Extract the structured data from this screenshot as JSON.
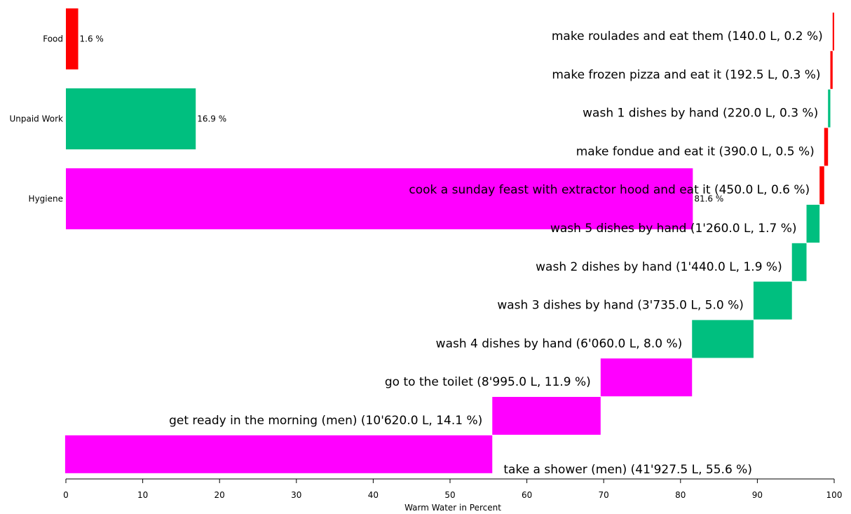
{
  "colors": {
    "Food": "#ff0000",
    "Unpaid Work": "#00bf7f",
    "Hygiene": "#ff00ff"
  },
  "chart_data": [
    {
      "type": "bar",
      "orientation": "horizontal",
      "categories": [
        "Food",
        "Unpaid Work",
        "Hygiene"
      ],
      "values": [
        1.6,
        16.9,
        81.6
      ],
      "value_labels": [
        "1.6 %",
        "16.9 %",
        "81.6 %"
      ],
      "xlim": [
        0,
        100
      ]
    },
    {
      "type": "bar",
      "subtype": "waterfall",
      "xlabel": "Warm Water in Percent",
      "xlim": [
        0,
        100
      ],
      "xticks": [
        "0",
        "10",
        "20",
        "30",
        "40",
        "50",
        "60",
        "70",
        "80",
        "90",
        "100"
      ],
      "activities": [
        {
          "label": "make roulades and eat them (140.0 L, 0.2 %)",
          "category": "Food",
          "percent": 0.2,
          "liters": 140.0
        },
        {
          "label": "make frozen pizza and eat it (192.5 L, 0.3 %)",
          "category": "Food",
          "percent": 0.3,
          "liters": 192.5
        },
        {
          "label": "wash 1 dishes by hand (220.0 L, 0.3 %)",
          "category": "Unpaid Work",
          "percent": 0.3,
          "liters": 220.0
        },
        {
          "label": "make fondue and eat it (390.0 L, 0.5 %)",
          "category": "Food",
          "percent": 0.5,
          "liters": 390.0
        },
        {
          "label": "cook a sunday feast with extractor hood and eat it (450.0 L, 0.6 %)",
          "category": "Food",
          "percent": 0.6,
          "liters": 450.0
        },
        {
          "label": "wash 5 dishes by hand (1'260.0 L, 1.7 %)",
          "category": "Unpaid Work",
          "percent": 1.7,
          "liters": 1260.0
        },
        {
          "label": "wash 2 dishes by hand (1'440.0 L, 1.9 %)",
          "category": "Unpaid Work",
          "percent": 1.9,
          "liters": 1440.0
        },
        {
          "label": "wash 3 dishes by hand (3'735.0 L, 5.0 %)",
          "category": "Unpaid Work",
          "percent": 5.0,
          "liters": 3735.0
        },
        {
          "label": "wash 4 dishes by hand (6'060.0 L, 8.0 %)",
          "category": "Unpaid Work",
          "percent": 8.0,
          "liters": 6060.0
        },
        {
          "label": "go to the toilet (8'995.0 L, 11.9 %)",
          "category": "Hygiene",
          "percent": 11.9,
          "liters": 8995.0
        },
        {
          "label": "get ready in the morning (men) (10'620.0 L, 14.1 %)",
          "category": "Hygiene",
          "percent": 14.1,
          "liters": 10620.0
        },
        {
          "label": "take a shower (men) (41'927.5 L, 55.6 %)",
          "category": "Hygiene",
          "percent": 55.6,
          "liters": 41927.5
        }
      ]
    }
  ]
}
